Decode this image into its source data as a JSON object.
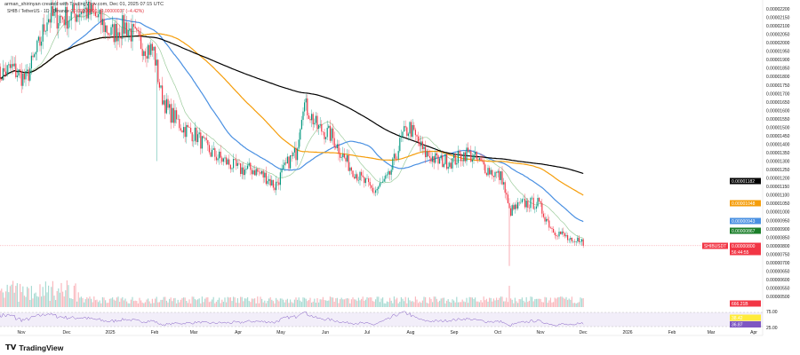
{
  "attribution": "arman_shirinyan created with TradingView.com, Dec 01, 2025 07:15 UTC",
  "legend": {
    "symbol": "SHIB / TetherUS · 1D · Binance",
    "close": "C0.00000800",
    "change": "−0.00000037 (−4.42%)"
  },
  "price_axis": [
    "0.00002200",
    "0.00002150",
    "0.00002100",
    "0.00002050",
    "0.00002000",
    "0.00001950",
    "0.00001900",
    "0.00001850",
    "0.00001800",
    "0.00001750",
    "0.00001700",
    "0.00001650",
    "0.00001600",
    "0.00001550",
    "0.00001500",
    "0.00001450",
    "0.00001400",
    "0.00001350",
    "0.00001300",
    "0.00001250",
    "0.00001200",
    "0.00001150",
    "0.00001100",
    "0.00001050",
    "0.00001000",
    "0.00000950",
    "0.00000900",
    "0.00000850",
    "0.00000800",
    "0.00000750",
    "0.00000700",
    "0.00000650",
    "0.00000600",
    "0.00000550",
    "0.00000500"
  ],
  "time_axis": [
    "Nov",
    "Dec",
    "2025",
    "Feb",
    "Mar",
    "Apr",
    "May",
    "Jun",
    "Jul",
    "Aug",
    "Sep",
    "Oct",
    "Nov",
    "Dec",
    "2026",
    "Feb",
    "Mar",
    "Apr"
  ],
  "tags": {
    "ma200": "0.00001182",
    "ma100": "0.00001048",
    "ma50": "0.00000943",
    "ma20": "0.00000867",
    "symbol": "SHIBUSDT",
    "price": "0.00000800",
    "countdown": "56:44:55",
    "volume": "666.21B",
    "rsi_75": "75.00",
    "rsi_25": "25.00",
    "rsi": "38.42",
    "rsi_ma": "36.87"
  },
  "colors": {
    "up": "#089981",
    "down": "#f23645",
    "ma200": "#000000",
    "ma100": "#f59d0a",
    "ma50": "#4a90e2",
    "ma20": "#9ccc9c",
    "rsi": "#7e57c2"
  },
  "chart_data": {
    "type": "candlestick",
    "title": "SHIB / TetherUS · 1D · Binance",
    "unit": "1e-8 USDT",
    "ylim": [
      500,
      2200
    ],
    "keypoints_day_close": [
      [
        0,
        1800
      ],
      [
        10,
        1850
      ],
      [
        20,
        1780
      ],
      [
        30,
        2000
      ],
      [
        35,
        2150
      ],
      [
        50,
        2150
      ],
      [
        60,
        2200
      ],
      [
        70,
        2150
      ],
      [
        80,
        2050
      ],
      [
        90,
        2100
      ],
      [
        100,
        2000
      ],
      [
        110,
        1950
      ],
      [
        115,
        1700
      ],
      [
        120,
        1600
      ],
      [
        130,
        1500
      ],
      [
        140,
        1450
      ],
      [
        150,
        1350
      ],
      [
        160,
        1300
      ],
      [
        170,
        1250
      ],
      [
        180,
        1250
      ],
      [
        190,
        1200
      ],
      [
        195,
        1150
      ],
      [
        205,
        1300
      ],
      [
        210,
        1350
      ],
      [
        215,
        1650
      ],
      [
        225,
        1500
      ],
      [
        235,
        1450
      ],
      [
        245,
        1300
      ],
      [
        255,
        1200
      ],
      [
        265,
        1120
      ],
      [
        275,
        1200
      ],
      [
        285,
        1450
      ],
      [
        290,
        1500
      ],
      [
        300,
        1350
      ],
      [
        310,
        1300
      ],
      [
        320,
        1300
      ],
      [
        330,
        1350
      ],
      [
        338,
        1300
      ],
      [
        345,
        1250
      ],
      [
        355,
        1200
      ],
      [
        360,
        1000
      ],
      [
        370,
        1050
      ],
      [
        380,
        1050
      ],
      [
        390,
        900
      ],
      [
        400,
        850
      ],
      [
        405,
        800
      ],
      [
        410,
        850
      ],
      [
        412,
        800
      ]
    ],
    "moving_averages": [
      20,
      50,
      100,
      200
    ],
    "last_close": 800
  }
}
